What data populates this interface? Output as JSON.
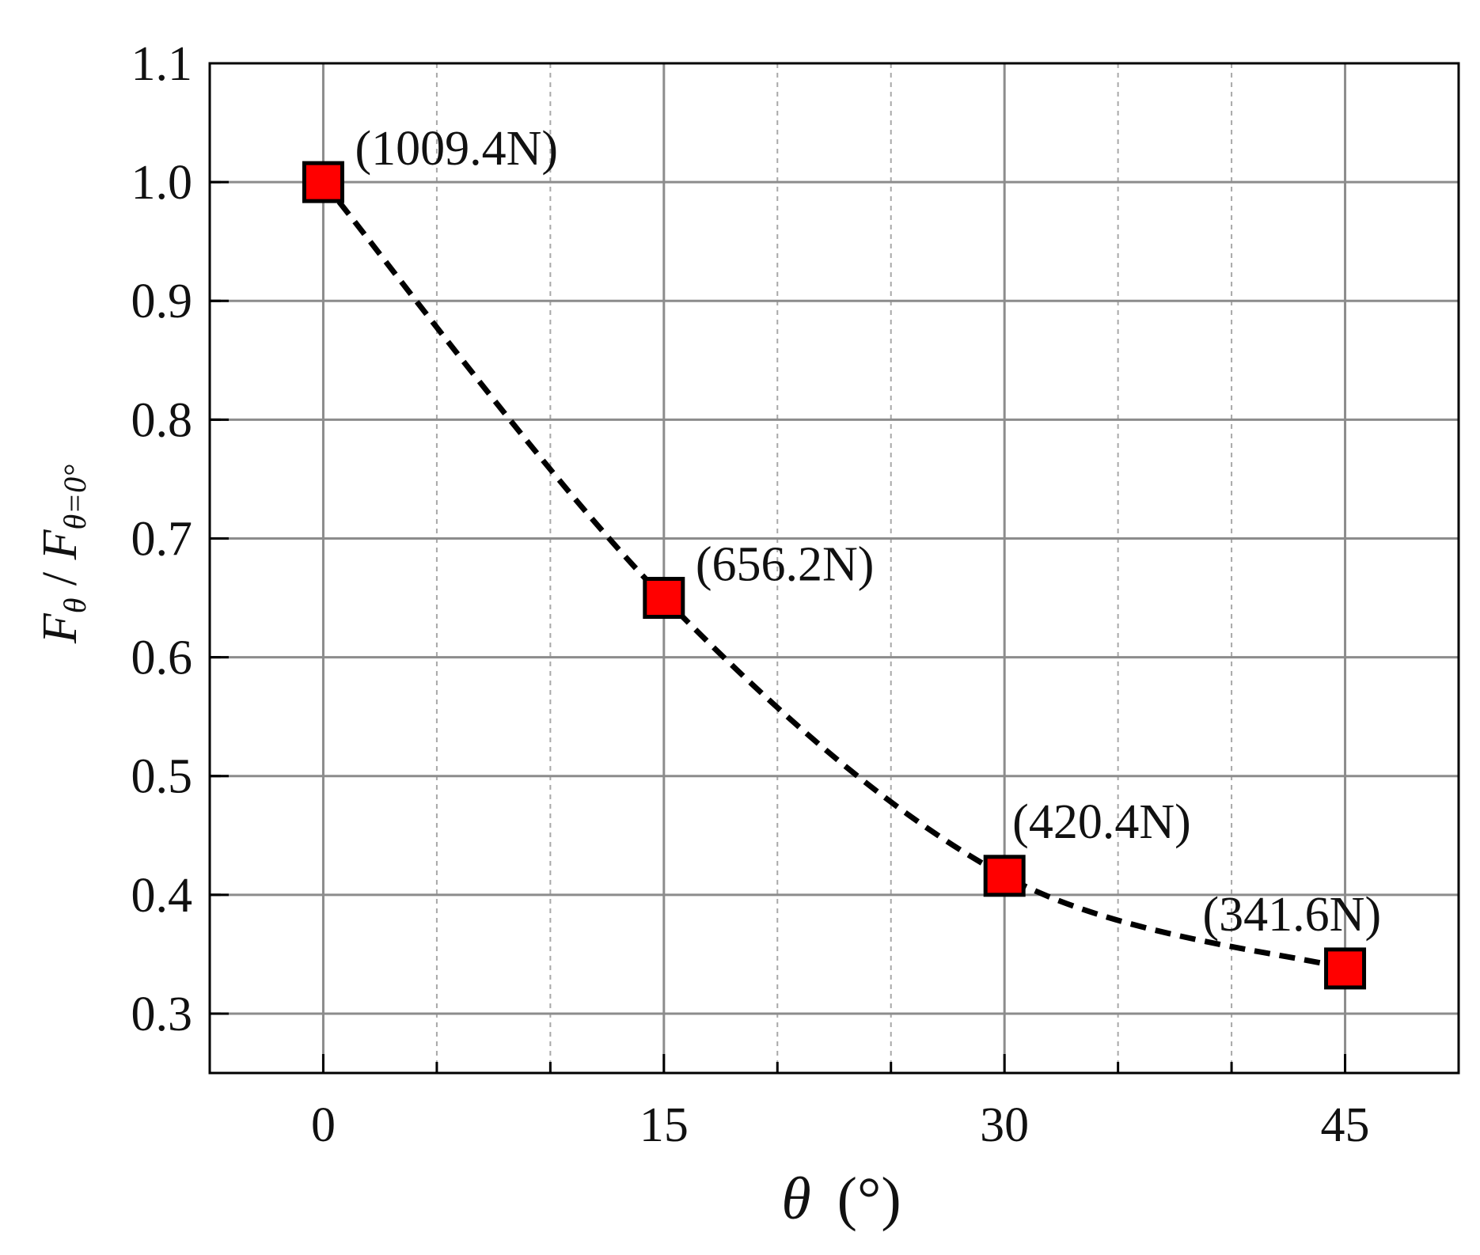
{
  "chart_data": {
    "type": "line",
    "title": "",
    "xlabel": {
      "symbol": "θ",
      "unit": "(°)"
    },
    "ylabel": {
      "num": "F",
      "num_sub": "θ",
      "sep": " / ",
      "den": "F",
      "den_sub": "θ=0°"
    },
    "xlim": [
      -5,
      50
    ],
    "ylim": [
      0.25,
      1.1
    ],
    "xticks": [
      0,
      15,
      30,
      45
    ],
    "xtick_labels": [
      "0",
      "15",
      "30",
      "45"
    ],
    "yticks": [
      0.3,
      0.4,
      0.5,
      0.6,
      0.7,
      0.8,
      0.9,
      1.0,
      1.1
    ],
    "ytick_labels": [
      "0.3",
      "0.4",
      "0.5",
      "0.6",
      "0.7",
      "0.8",
      "0.9",
      "1.0",
      "1.1"
    ],
    "grid": true,
    "series": [
      {
        "marker": "square",
        "marker_color": "#ff0000",
        "line_style": "dashed",
        "line_color": "#000000",
        "x": [
          0,
          15,
          30,
          45
        ],
        "y": [
          1.0,
          0.65,
          0.416,
          0.338
        ],
        "point_labels": [
          "(1009.4N)",
          "(656.2N)",
          "(420.4N)",
          "(341.6N)"
        ]
      }
    ]
  }
}
